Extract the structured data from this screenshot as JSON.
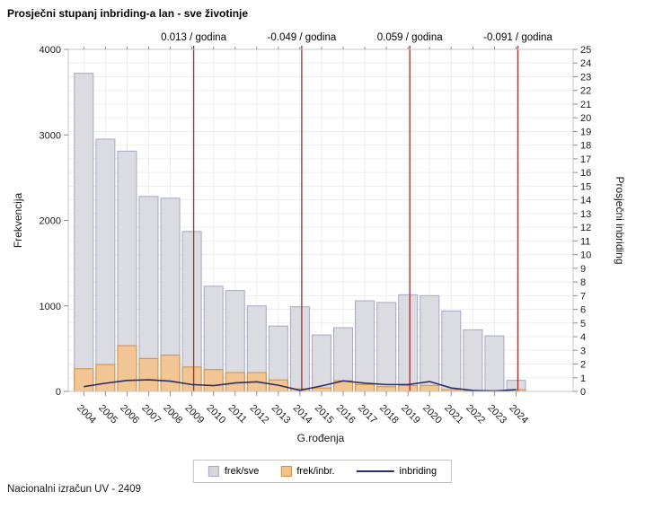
{
  "title": "Prosječni stupanj inbriding-a lan - sve životinje",
  "footer": "Nacionalni izračun UV - 2409",
  "chart_data": {
    "type": "bar",
    "categories": [
      "2004",
      "2005",
      "2006",
      "2007",
      "2008",
      "2009",
      "2010",
      "2011",
      "2012",
      "2013",
      "2014",
      "2015",
      "2016",
      "2017",
      "2018",
      "2019",
      "2020",
      "2021",
      "2022",
      "2023",
      "2024"
    ],
    "series": [
      {
        "name": "frek/sve",
        "type": "bar",
        "axis": "left",
        "fill": "#d6d7dd",
        "stroke": "#a3a8c8",
        "values": [
          3720,
          2950,
          2810,
          2280,
          2260,
          1870,
          1230,
          1180,
          1000,
          765,
          990,
          660,
          745,
          1060,
          1040,
          1130,
          1120,
          940,
          720,
          650,
          130
        ]
      },
      {
        "name": "frek/inbr.",
        "type": "bar",
        "axis": "left",
        "fill": "#f4c289",
        "stroke": "#cd8f45",
        "values": [
          265,
          315,
          535,
          385,
          425,
          285,
          255,
          220,
          220,
          135,
          30,
          40,
          125,
          80,
          55,
          70,
          70,
          20,
          10,
          8,
          20
        ]
      },
      {
        "name": "inbriding",
        "type": "line",
        "axis": "right",
        "stroke": "#2b2f66",
        "values": [
          0.35,
          0.6,
          0.8,
          0.85,
          0.75,
          0.5,
          0.42,
          0.62,
          0.7,
          0.45,
          0.08,
          0.4,
          0.77,
          0.6,
          0.5,
          0.5,
          0.72,
          0.25,
          0.07,
          0.03,
          0.13
        ]
      }
    ],
    "xlabel": "G.rođenja",
    "ylabel_left": "Frekvencija",
    "ylabel_right": "Prosječni inbriding",
    "ylim_left": [
      0,
      4000
    ],
    "ytick_step_left": 1000,
    "ylim_right": [
      0,
      25
    ],
    "ytick_step_right": 1,
    "grid": true,
    "legend_position": "bottom",
    "reference_lines": [
      {
        "year": "2009",
        "label": "0.013 / godina"
      },
      {
        "year": "2014",
        "label": "-0.049 / godina"
      },
      {
        "year": "2019",
        "label": "0.059 / godina"
      },
      {
        "year": "2024",
        "label": "-0.091 / godina"
      }
    ],
    "colors": {
      "reference_line": "#a22c2c",
      "grid": "#ededed",
      "frame": "#c6c6c6",
      "tick": "#8c8c8c",
      "text": "#1a1a1a"
    }
  }
}
